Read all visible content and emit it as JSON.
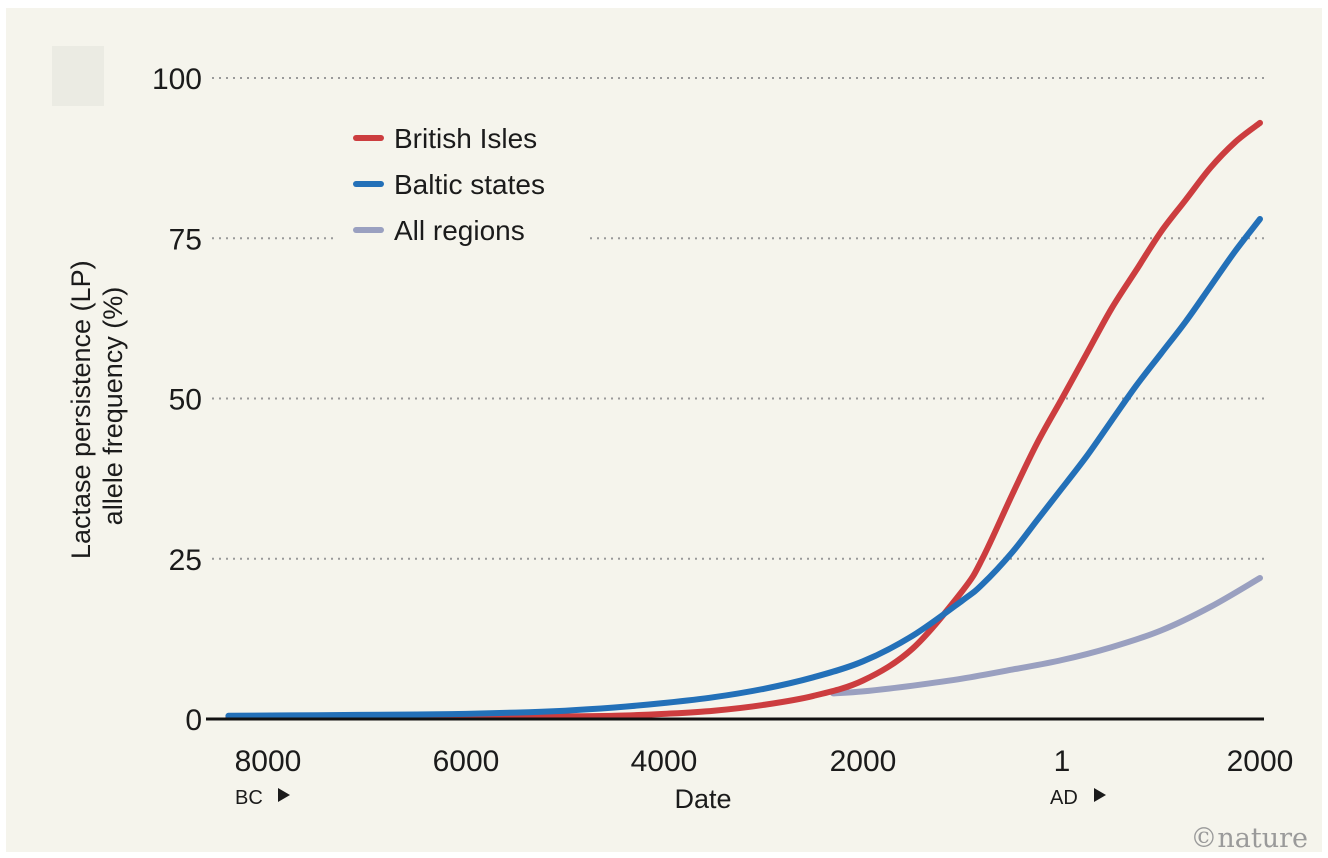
{
  "chart_data": {
    "type": "line",
    "xlabel": "Date",
    "ylabel_lines": [
      "Lactase persistence (LP)",
      "allele frequency (%)"
    ],
    "era_labels": {
      "bc": "BC",
      "ad": "AD"
    },
    "x_ticks": [
      {
        "label": "8000",
        "year": -8000
      },
      {
        "label": "6000",
        "year": -6000
      },
      {
        "label": "4000",
        "year": -4000
      },
      {
        "label": "2000",
        "year": -2000
      },
      {
        "label": "1",
        "year": 1
      },
      {
        "label": "2000",
        "year": 2000
      }
    ],
    "y_ticks": [
      0,
      25,
      50,
      75,
      100
    ],
    "ylim": [
      0,
      100
    ],
    "xlim": [
      -8500,
      2000
    ],
    "grid": "horizontal dotted",
    "legend_position": "top-left",
    "series": [
      {
        "name": "British Isles",
        "color": "#cc3d3f",
        "points": [
          [
            -8400,
            0.3
          ],
          [
            -7000,
            0.3
          ],
          [
            -6000,
            0.3
          ],
          [
            -5000,
            0.4
          ],
          [
            -4500,
            0.5
          ],
          [
            -4000,
            0.8
          ],
          [
            -3500,
            1.3
          ],
          [
            -3000,
            2.2
          ],
          [
            -2500,
            3.6
          ],
          [
            -2000,
            6
          ],
          [
            -1500,
            11
          ],
          [
            -1000,
            20
          ],
          [
            -800,
            25
          ],
          [
            -500,
            35
          ],
          [
            -250,
            43
          ],
          [
            1,
            50
          ],
          [
            250,
            57
          ],
          [
            500,
            64
          ],
          [
            750,
            70
          ],
          [
            1000,
            76
          ],
          [
            1250,
            81
          ],
          [
            1500,
            86
          ],
          [
            1750,
            90
          ],
          [
            2000,
            93
          ]
        ]
      },
      {
        "name": "Baltic states",
        "color": "#2370b8",
        "points": [
          [
            -8400,
            0.5
          ],
          [
            -7500,
            0.6
          ],
          [
            -6500,
            0.7
          ],
          [
            -6000,
            0.8
          ],
          [
            -5500,
            1
          ],
          [
            -5000,
            1.3
          ],
          [
            -4500,
            1.8
          ],
          [
            -4000,
            2.5
          ],
          [
            -3500,
            3.4
          ],
          [
            -3000,
            4.7
          ],
          [
            -2500,
            6.5
          ],
          [
            -2000,
            9
          ],
          [
            -1500,
            13
          ],
          [
            -1000,
            18.5
          ],
          [
            -800,
            21
          ],
          [
            -500,
            26
          ],
          [
            -250,
            31
          ],
          [
            1,
            36
          ],
          [
            250,
            41
          ],
          [
            500,
            46.5
          ],
          [
            750,
            52
          ],
          [
            1000,
            57
          ],
          [
            1250,
            62
          ],
          [
            1500,
            67.5
          ],
          [
            1750,
            73
          ],
          [
            2000,
            78
          ]
        ]
      },
      {
        "name": "All regions",
        "color": "#9aa0c0",
        "points": [
          [
            -2300,
            4
          ],
          [
            -2000,
            4.3
          ],
          [
            -1500,
            5.2
          ],
          [
            -1000,
            6.3
          ],
          [
            -500,
            7.7
          ],
          [
            1,
            9.2
          ],
          [
            500,
            11.2
          ],
          [
            1000,
            13.8
          ],
          [
            1500,
            17.5
          ],
          [
            2000,
            22
          ]
        ]
      }
    ]
  },
  "credit": "©nature"
}
